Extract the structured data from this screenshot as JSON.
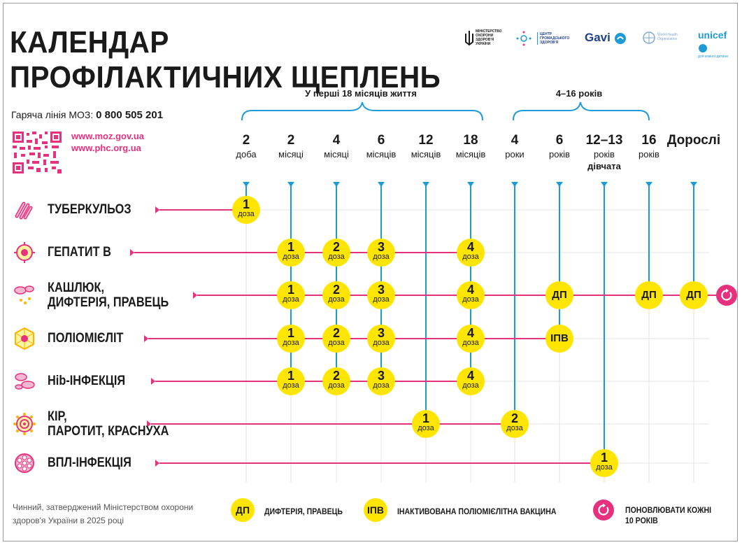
{
  "title": "КАЛЕНДАР ПРОФІЛАКТИЧНИХ ЩЕПЛЕНЬ",
  "hotline": {
    "label": "Гаряча лінія МОЗ:",
    "number": "0 800 505 201"
  },
  "urls": [
    "www.moz.gov.ua",
    "www.phc.org.ua"
  ],
  "logos": {
    "ministry": "МІНІСТЕРСТВО ОХОРОНИ ЗДОРОВ'Я УКРАЇНИ",
    "phc": "ЦЕНТР ГРОМАДСЬКОГО ЗДОРОВ'Я",
    "gavi": "Gavi",
    "who": "World Health Organization",
    "unicef": "unicef",
    "unicef_sub": "для кожної дитини"
  },
  "periods": {
    "first": "У перші 18 місяців життя",
    "second": "4–16 років"
  },
  "columns": [
    {
      "num": "2",
      "unit": "доба",
      "extra": ""
    },
    {
      "num": "2",
      "unit": "місяці",
      "extra": ""
    },
    {
      "num": "4",
      "unit": "місяці",
      "extra": ""
    },
    {
      "num": "6",
      "unit": "місяців",
      "extra": ""
    },
    {
      "num": "12",
      "unit": "місяців",
      "extra": ""
    },
    {
      "num": "18",
      "unit": "місяців",
      "extra": ""
    },
    {
      "num": "4",
      "unit": "роки",
      "extra": ""
    },
    {
      "num": "6",
      "unit": "років",
      "extra": ""
    },
    {
      "num": "12–13",
      "unit": "років",
      "extra": "дівчата"
    },
    {
      "num": "16",
      "unit": "років",
      "extra": ""
    },
    {
      "num": "Дорослі",
      "unit": "",
      "extra": ""
    }
  ],
  "vaccines": [
    {
      "name": "ТУБЕРКУЛЬОЗ",
      "icon": "tuberculosis-bacteria-icon",
      "doses": [
        {
          "col": 0,
          "n": "1",
          "label": "доза"
        }
      ],
      "renew": false
    },
    {
      "name": "ГЕПАТИТ В",
      "icon": "hepatitis-b-virus-icon",
      "doses": [
        {
          "col": 1,
          "n": "1",
          "label": "доза"
        },
        {
          "col": 2,
          "n": "2",
          "label": "доза"
        },
        {
          "col": 3,
          "n": "3",
          "label": "доза"
        },
        {
          "col": 5,
          "n": "4",
          "label": "доза"
        }
      ],
      "renew": false
    },
    {
      "name": "КАШЛЮК, ДИФТЕРІЯ, ПРАВЕЦЬ",
      "icon": "pertussis-bacteria-icon",
      "doses": [
        {
          "col": 1,
          "n": "1",
          "label": "доза"
        },
        {
          "col": 2,
          "n": "2",
          "label": "доза"
        },
        {
          "col": 3,
          "n": "3",
          "label": "доза"
        },
        {
          "col": 5,
          "n": "4",
          "label": "доза"
        },
        {
          "col": 7,
          "t": "ДП"
        },
        {
          "col": 9,
          "t": "ДП"
        },
        {
          "col": 10,
          "t": "ДП"
        }
      ],
      "renew": true
    },
    {
      "name": "ПОЛІОМІЄЛІТ",
      "icon": "polio-virus-icon",
      "doses": [
        {
          "col": 1,
          "n": "1",
          "label": "доза"
        },
        {
          "col": 2,
          "n": "2",
          "label": "доза"
        },
        {
          "col": 3,
          "n": "3",
          "label": "доза"
        },
        {
          "col": 5,
          "n": "4",
          "label": "доза"
        },
        {
          "col": 7,
          "t": "ІПВ"
        }
      ],
      "renew": false
    },
    {
      "name": "Hib-ІНФЕКЦІЯ",
      "icon": "hib-bacteria-icon",
      "doses": [
        {
          "col": 1,
          "n": "1",
          "label": "доза"
        },
        {
          "col": 2,
          "n": "2",
          "label": "доза"
        },
        {
          "col": 3,
          "n": "3",
          "label": "доза"
        },
        {
          "col": 5,
          "n": "4",
          "label": "доза"
        }
      ],
      "renew": false
    },
    {
      "name": "КІР, ПАРОТИТ, КРАСНУХА",
      "icon": "measles-virus-icon",
      "doses": [
        {
          "col": 4,
          "n": "1",
          "label": "доза"
        },
        {
          "col": 6,
          "n": "2",
          "label": "доза"
        }
      ],
      "renew": false
    },
    {
      "name": "ВПЛ-ІНФЕКЦІЯ",
      "icon": "hpv-virus-icon",
      "doses": [
        {
          "col": 8,
          "n": "1",
          "label": "доза"
        }
      ],
      "renew": false
    }
  ],
  "footer_note": "Чинний, затверджений Міністерством охорони здоров'я України в 2025 році",
  "legend": [
    {
      "badge": "ДП",
      "text": "ДИФТЕРІЯ, ПРАВЕЦЬ"
    },
    {
      "badge": "ІПВ",
      "text": "ІНАКТИВОВАНА ПОЛІОМІЄЛІТНА ВАКЦИНА"
    },
    {
      "badge": "",
      "text": "ПОНОВЛЮВАТИ КОЖНІ 10 РОКІВ"
    }
  ],
  "colors": {
    "accent_pink": "#e6317f",
    "dose_yellow": "#ffe500",
    "timeline_blue": "#1e9bd7"
  }
}
